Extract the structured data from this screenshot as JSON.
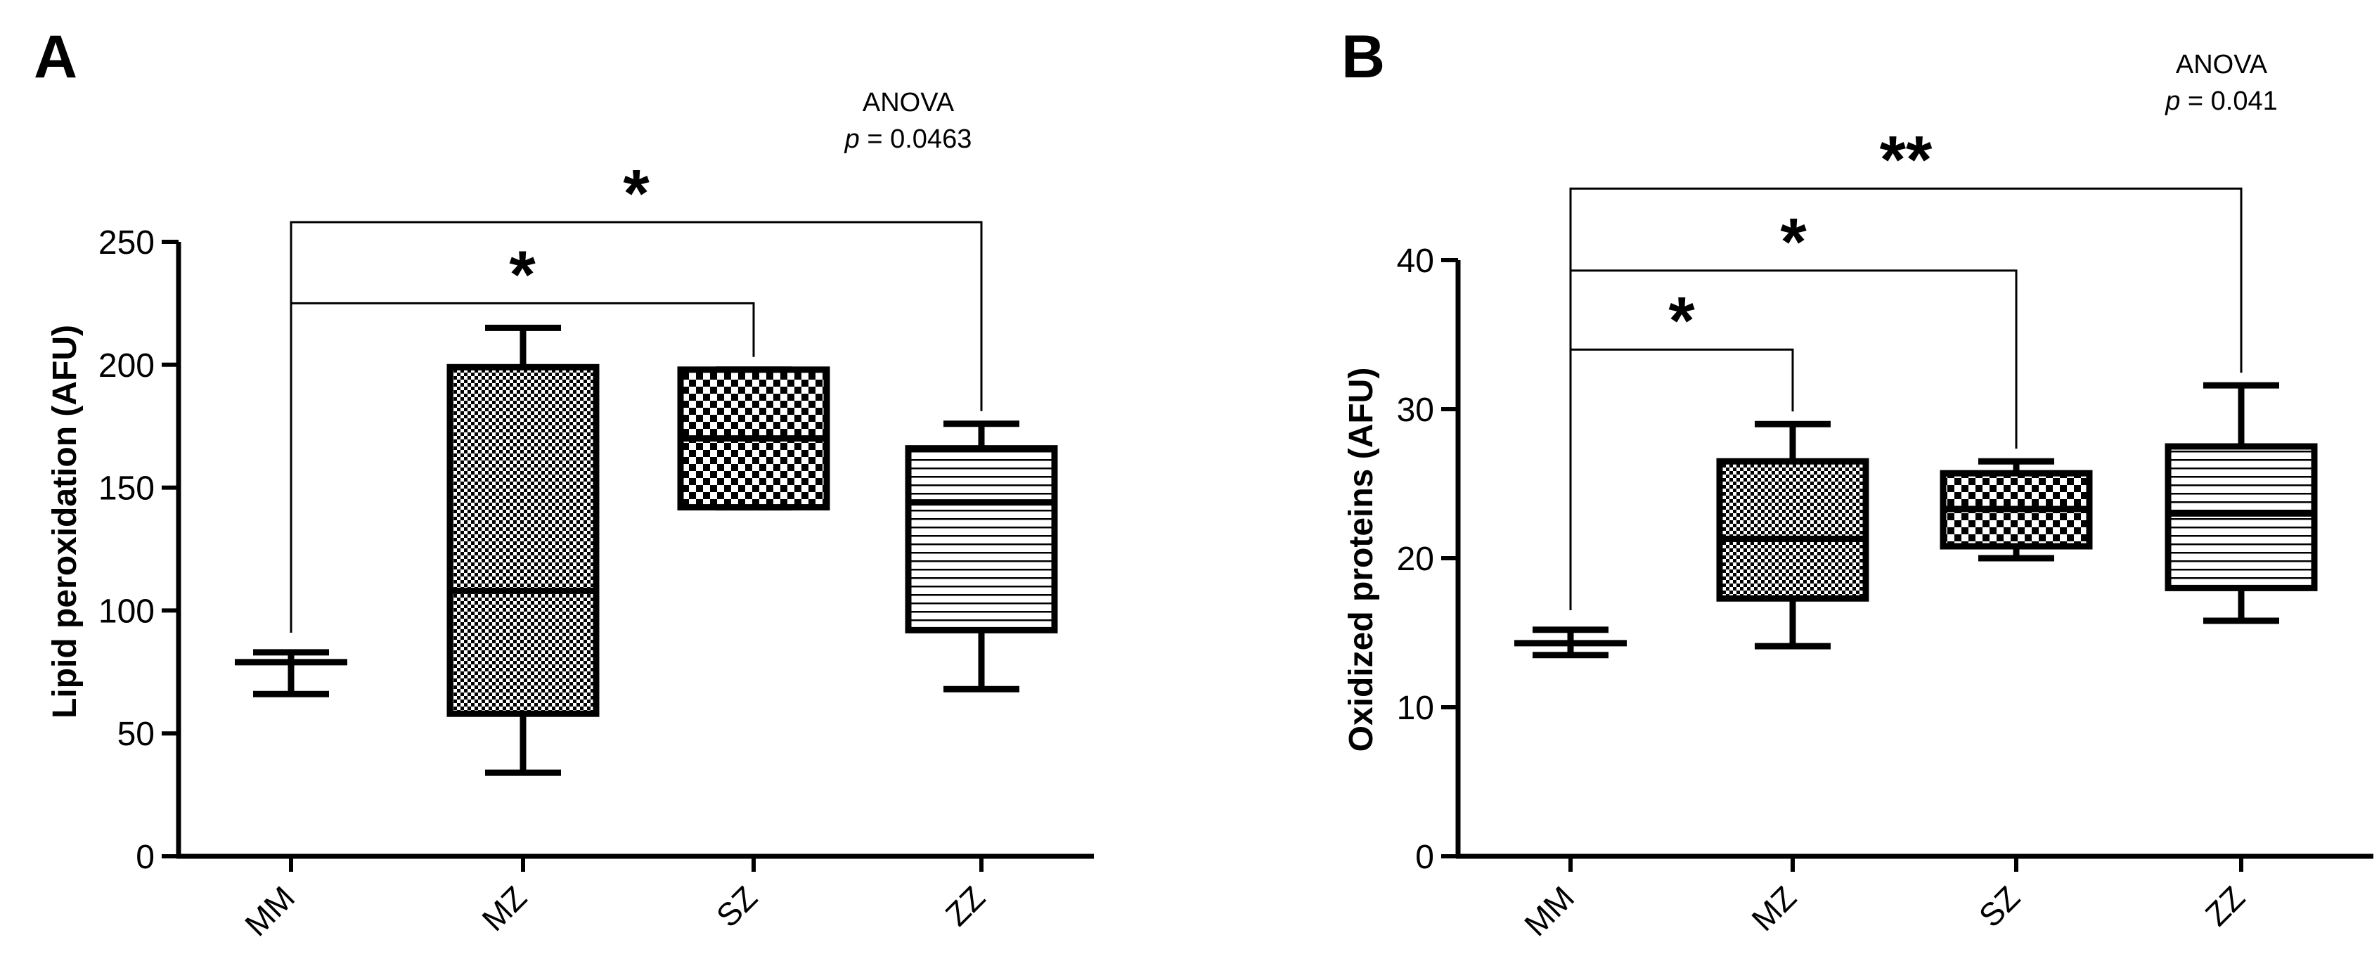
{
  "chart_data": [
    {
      "type": "box",
      "panel": "A",
      "ylabel": "Lipid peroxidation (AFU)",
      "ylim": [
        0,
        250
      ],
      "yticks": [
        0,
        50,
        100,
        150,
        200,
        250
      ],
      "categories": [
        "MM",
        "MZ",
        "SZ",
        "ZZ"
      ],
      "boxes": [
        {
          "category": "MM",
          "min": 66,
          "q1": 79,
          "median": 79,
          "q3": 79,
          "max": 83,
          "pattern": "none"
        },
        {
          "category": "MZ",
          "min": 34,
          "q1": 58,
          "median": 108,
          "q3": 199,
          "max": 215,
          "pattern": "fine-check"
        },
        {
          "category": "SZ",
          "min": 142,
          "q1": 142,
          "median": 170,
          "q3": 198,
          "max": 198,
          "pattern": "coarse-check"
        },
        {
          "category": "ZZ",
          "min": 68,
          "q1": 92,
          "median": 144,
          "q3": 166,
          "max": 176,
          "pattern": "horizontal-lines"
        }
      ],
      "annotation": {
        "line1": "ANOVA",
        "p_label": "p",
        "p_value": " = 0.0463"
      },
      "significance": [
        {
          "from": "MM",
          "to": "SZ",
          "label": "*",
          "bracket_y": 225
        },
        {
          "from": "MM",
          "to": "ZZ",
          "label": "*",
          "bracket_y": 258
        }
      ]
    },
    {
      "type": "box",
      "panel": "B",
      "ylabel": "Oxidized  proteins (AFU)",
      "ylim": [
        0,
        40
      ],
      "yticks": [
        0,
        10,
        20,
        30,
        40
      ],
      "categories": [
        "MM",
        "MZ",
        "SZ",
        "ZZ"
      ],
      "boxes": [
        {
          "category": "MM",
          "min": 13.5,
          "q1": 14.3,
          "median": 14.3,
          "q3": 14.3,
          "max": 15.2,
          "pattern": "none"
        },
        {
          "category": "MZ",
          "min": 14.1,
          "q1": 17.3,
          "median": 21.3,
          "q3": 26.5,
          "max": 29.0,
          "pattern": "fine-check"
        },
        {
          "category": "SZ",
          "min": 20.0,
          "q1": 20.8,
          "median": 23.3,
          "q3": 25.7,
          "max": 26.5,
          "pattern": "coarse-check"
        },
        {
          "category": "ZZ",
          "min": 15.8,
          "q1": 18.0,
          "median": 23.0,
          "q3": 27.5,
          "max": 31.6,
          "pattern": "horizontal-lines"
        }
      ],
      "annotation": {
        "line1": "ANOVA",
        "p_label": "p",
        "p_value": " = 0.041"
      },
      "significance": [
        {
          "from": "MM",
          "to": "MZ",
          "label": "*",
          "bracket_y": 34
        },
        {
          "from": "MM",
          "to": "SZ",
          "label": "*",
          "bracket_y": 39.3
        },
        {
          "from": "MM",
          "to": "ZZ",
          "label": "**",
          "bracket_y": 44.8
        }
      ]
    }
  ]
}
